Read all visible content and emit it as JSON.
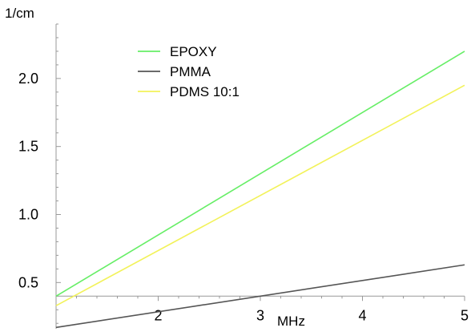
{
  "chart_data": {
    "type": "line",
    "xlabel": "MHz",
    "ylabel": "1/cm",
    "xlim": [
      1.0,
      5.0
    ],
    "ylim": [
      0.16,
      2.4
    ],
    "axis_crossing": {
      "x": 1.0,
      "y": 0.4
    },
    "x_ticks": [
      2,
      3,
      4,
      5
    ],
    "x_tick_labels": [
      "2",
      "3",
      "4",
      "5"
    ],
    "y_ticks": [
      0.5,
      1.0,
      1.5,
      2.0
    ],
    "y_tick_labels": [
      "0.5",
      "1.0",
      "1.5",
      "2.0"
    ],
    "grid": false,
    "legend_position": "top-left",
    "series": [
      {
        "name": "EPOXY",
        "color": "#66ee66",
        "x": [
          1.0,
          5.0
        ],
        "y": [
          0.4,
          2.2
        ]
      },
      {
        "name": "PMMA",
        "color": "#555555",
        "x": [
          1.0,
          5.0
        ],
        "y": [
          0.17,
          0.63
        ]
      },
      {
        "name": "PDMS 10:1",
        "color": "#f2f25a",
        "x": [
          1.0,
          5.0
        ],
        "y": [
          0.33,
          1.95
        ]
      }
    ]
  }
}
